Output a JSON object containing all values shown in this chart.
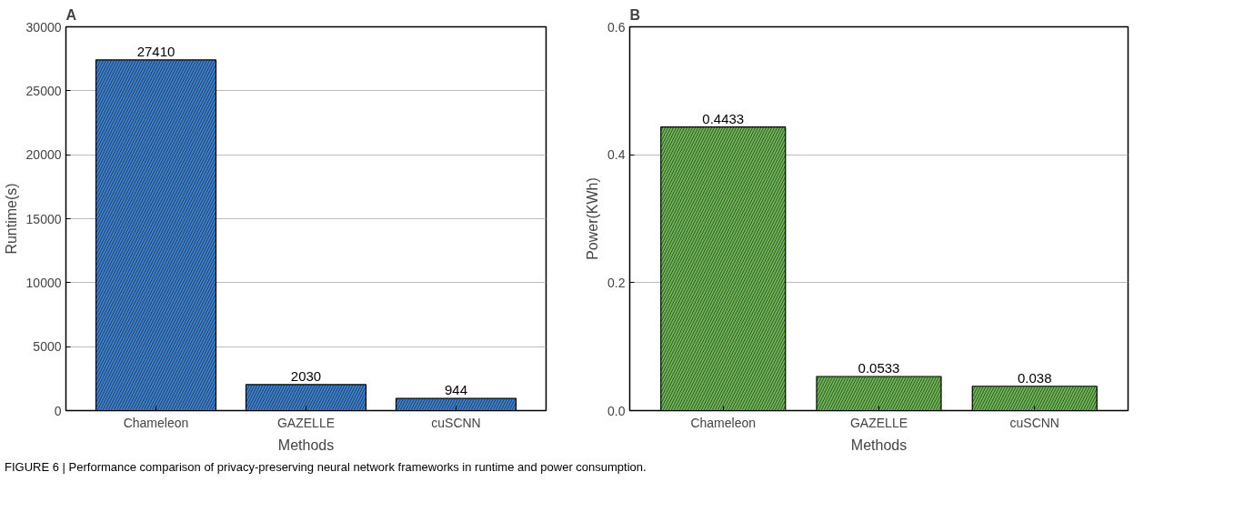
{
  "chart_data": [
    {
      "type": "bar",
      "title": "A",
      "xlabel": "Methods",
      "ylabel": "Runtime(s)",
      "categories": [
        "Chameleon",
        "GAZELLE",
        "cuSCNN"
      ],
      "values": [
        27410,
        2030,
        944
      ],
      "color": "#3a7fd0",
      "ylim": [
        0,
        30000
      ],
      "yticks": [
        0,
        5000,
        10000,
        15000,
        20000,
        25000,
        30000
      ],
      "grid": "y",
      "data_labels": true,
      "annotations": [
        "FIGURE 6 | Performance comparison of privacy-preserving neural network frameworks in runtime and power consumption."
      ]
    },
    {
      "type": "bar",
      "title": "B",
      "xlabel": "Methods",
      "ylabel": "Power(KWh)",
      "categories": [
        "Chameleon",
        "GAZELLE",
        "cuSCNN"
      ],
      "values": [
        0.4433,
        0.0533,
        0.038
      ],
      "color": "#6ab651",
      "ylim": [
        0,
        0.6
      ],
      "yticks": [
        {
          "value": 0,
          "label": "0.0"
        },
        {
          "value": 0.2,
          "label": "0.2"
        },
        {
          "value": 0.4,
          "label": "0.4"
        },
        {
          "value": 0.6,
          "label": "0.6"
        }
      ],
      "grid": "y",
      "data_labels": true
    }
  ]
}
